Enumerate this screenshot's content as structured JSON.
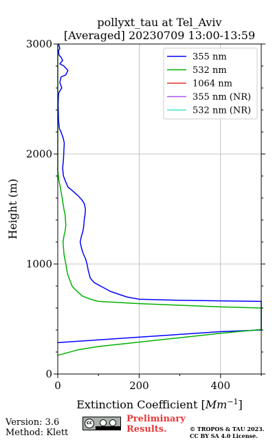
{
  "chart_data": {
    "type": "line",
    "title_line1": "pollyxt_tau at Tel_Aviv",
    "title_line2": "[Averaged] 20230709 13:00-13:59",
    "xlabel": "Extinction Coefficient [Mm⁻¹]",
    "xlabel_main": "Extinction Coefficient [",
    "xlabel_unit": "Mm",
    "xlabel_exp": "−1",
    "xlabel_close": "]",
    "ylabel": "Height (m)",
    "xlim": [
      0,
      500
    ],
    "ylim": [
      0,
      3000
    ],
    "xticks": [
      0,
      200,
      400
    ],
    "yticks": [
      0,
      1000,
      2000,
      3000
    ],
    "grid": true,
    "legend_position": "top-right",
    "series": [
      {
        "name": "355 nm",
        "color": "#0000ff",
        "points": [
          [
            0,
            285
          ],
          [
            100,
            310
          ],
          [
            200,
            335
          ],
          [
            300,
            360
          ],
          [
            400,
            385
          ],
          [
            500,
            400
          ],
          [
            500,
            660
          ],
          [
            400,
            665
          ],
          [
            300,
            670
          ],
          [
            200,
            680
          ],
          [
            170,
            700
          ],
          [
            130,
            750
          ],
          [
            110,
            790
          ],
          [
            90,
            830
          ],
          [
            80,
            870
          ],
          [
            75,
            940
          ],
          [
            72,
            1000
          ],
          [
            68,
            1050
          ],
          [
            62,
            1100
          ],
          [
            58,
            1150
          ],
          [
            55,
            1200
          ],
          [
            58,
            1250
          ],
          [
            62,
            1300
          ],
          [
            64,
            1350
          ],
          [
            65,
            1400
          ],
          [
            67,
            1450
          ],
          [
            68,
            1500
          ],
          [
            65,
            1550
          ],
          [
            60,
            1580
          ],
          [
            50,
            1620
          ],
          [
            35,
            1670
          ],
          [
            25,
            1700
          ],
          [
            18,
            1760
          ],
          [
            14,
            1800
          ],
          [
            12,
            1870
          ],
          [
            14,
            1950
          ],
          [
            15,
            2030
          ],
          [
            16,
            2100
          ],
          [
            13,
            2150
          ],
          [
            8,
            2200
          ],
          [
            4,
            2230
          ],
          [
            2,
            2300
          ],
          [
            1,
            2450
          ],
          [
            2,
            2550
          ],
          [
            6,
            2580
          ],
          [
            10,
            2600
          ],
          [
            5,
            2650
          ],
          [
            8,
            2700
          ],
          [
            20,
            2720
          ],
          [
            25,
            2760
          ],
          [
            15,
            2800
          ],
          [
            5,
            2820
          ],
          [
            12,
            2850
          ],
          [
            8,
            2880
          ],
          [
            3,
            2900
          ],
          [
            2,
            2940
          ],
          [
            5,
            2960
          ],
          [
            2,
            3000
          ]
        ]
      },
      {
        "name": "532 nm",
        "color": "#00b000",
        "points": [
          [
            0,
            170
          ],
          [
            50,
            220
          ],
          [
            100,
            250
          ],
          [
            200,
            290
          ],
          [
            300,
            330
          ],
          [
            400,
            370
          ],
          [
            500,
            405
          ],
          [
            500,
            600
          ],
          [
            400,
            610
          ],
          [
            300,
            625
          ],
          [
            200,
            640
          ],
          [
            100,
            660
          ],
          [
            80,
            680
          ],
          [
            60,
            710
          ],
          [
            45,
            760
          ],
          [
            35,
            800
          ],
          [
            30,
            850
          ],
          [
            25,
            900
          ],
          [
            22,
            950
          ],
          [
            20,
            1000
          ],
          [
            17,
            1050
          ],
          [
            15,
            1100
          ],
          [
            14,
            1150
          ],
          [
            13,
            1200
          ],
          [
            15,
            1250
          ],
          [
            18,
            1300
          ],
          [
            20,
            1350
          ],
          [
            19,
            1400
          ],
          [
            18,
            1450
          ],
          [
            15,
            1500
          ],
          [
            13,
            1550
          ],
          [
            10,
            1620
          ],
          [
            6,
            1700
          ],
          [
            2,
            1780
          ],
          [
            0,
            1850
          ],
          [
            0,
            3000
          ]
        ]
      },
      {
        "name": "1064 nm",
        "color": "#e0302a",
        "points": []
      },
      {
        "name": "355 nm (NR)",
        "color": "#a855f7",
        "points": []
      },
      {
        "name": "532 nm (NR)",
        "color": "#40e0d0",
        "points": []
      }
    ]
  },
  "footer": {
    "version": "Version: 3.6",
    "method": "Method: Klett",
    "preliminary_line1": "Preliminary",
    "preliminary_line2": "Results.",
    "copyright_line1": "© TROPOS & TAU 2023.",
    "copyright_line2": "CC BY SA 4.0 License.",
    "badge_text": "cc"
  }
}
